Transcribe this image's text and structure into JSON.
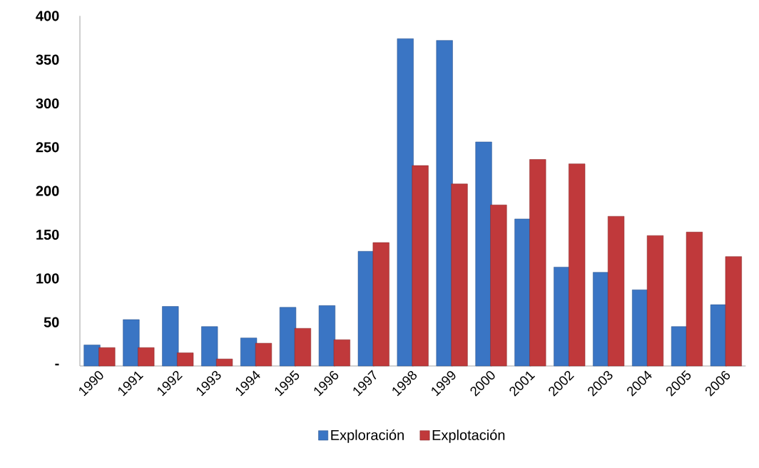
{
  "chart_data": {
    "type": "bar",
    "categories": [
      "1990",
      "1991",
      "1992",
      "1993",
      "1994",
      "1995",
      "1996",
      "1997",
      "1998",
      "1999",
      "2000",
      "2001",
      "2002",
      "2003",
      "2004",
      "2005",
      "2006"
    ],
    "series": [
      {
        "name": "Exploración",
        "color": "#3a75c4",
        "values": [
          24,
          53,
          68,
          45,
          32,
          67,
          69,
          131,
          374,
          372,
          256,
          168,
          113,
          107,
          87,
          45,
          70
        ]
      },
      {
        "name": "Explotación",
        "color": "#c0393b",
        "values": [
          21,
          21,
          15,
          8,
          26,
          43,
          30,
          141,
          229,
          208,
          184,
          236,
          231,
          171,
          149,
          153,
          125
        ]
      }
    ],
    "ylim": [
      0,
      400
    ],
    "yticks": [
      {
        "value": 0,
        "label": "-"
      },
      50,
      100,
      150,
      200,
      250,
      300,
      350,
      400
    ],
    "legend": "bottom"
  }
}
